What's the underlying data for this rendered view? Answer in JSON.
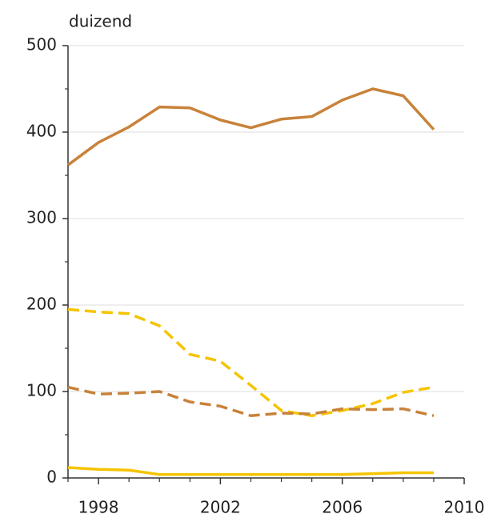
{
  "chart_data": {
    "type": "line",
    "y_label": "duizend",
    "x": [
      1997,
      1998,
      1999,
      2000,
      2001,
      2002,
      2003,
      2004,
      2005,
      2006,
      2007,
      2008,
      2009
    ],
    "series": [
      {
        "color": "#c8823a",
        "dash": false,
        "values": [
          362,
          388,
          406,
          429,
          428,
          414,
          405,
          415,
          418,
          437,
          450,
          442,
          403
        ]
      },
      {
        "color": "#f5c400",
        "dash": true,
        "values": [
          195,
          192,
          190,
          176,
          143,
          135,
          107,
          78,
          72,
          78,
          86,
          99,
          105
        ]
      },
      {
        "color": "#c8823a",
        "dash": true,
        "values": [
          105,
          97,
          98,
          100,
          88,
          83,
          72,
          75,
          74,
          80,
          79,
          80,
          72
        ]
      },
      {
        "color": "#f5c400",
        "dash": false,
        "values": [
          12,
          10,
          9,
          4,
          4,
          4,
          4,
          4,
          4,
          4,
          5,
          6,
          6
        ]
      }
    ],
    "xlim": [
      1997,
      2010
    ],
    "xticks": [
      1998,
      2002,
      2006,
      2010
    ],
    "xminorticks": [
      1997,
      1999,
      2000,
      2001,
      2003,
      2004,
      2005,
      2007,
      2008,
      2009
    ],
    "ylim": [
      0,
      500
    ],
    "yticks": [
      0,
      100,
      200,
      300,
      400,
      500
    ],
    "yminorticks": [
      50,
      150,
      250,
      350,
      450
    ],
    "grid": true
  }
}
